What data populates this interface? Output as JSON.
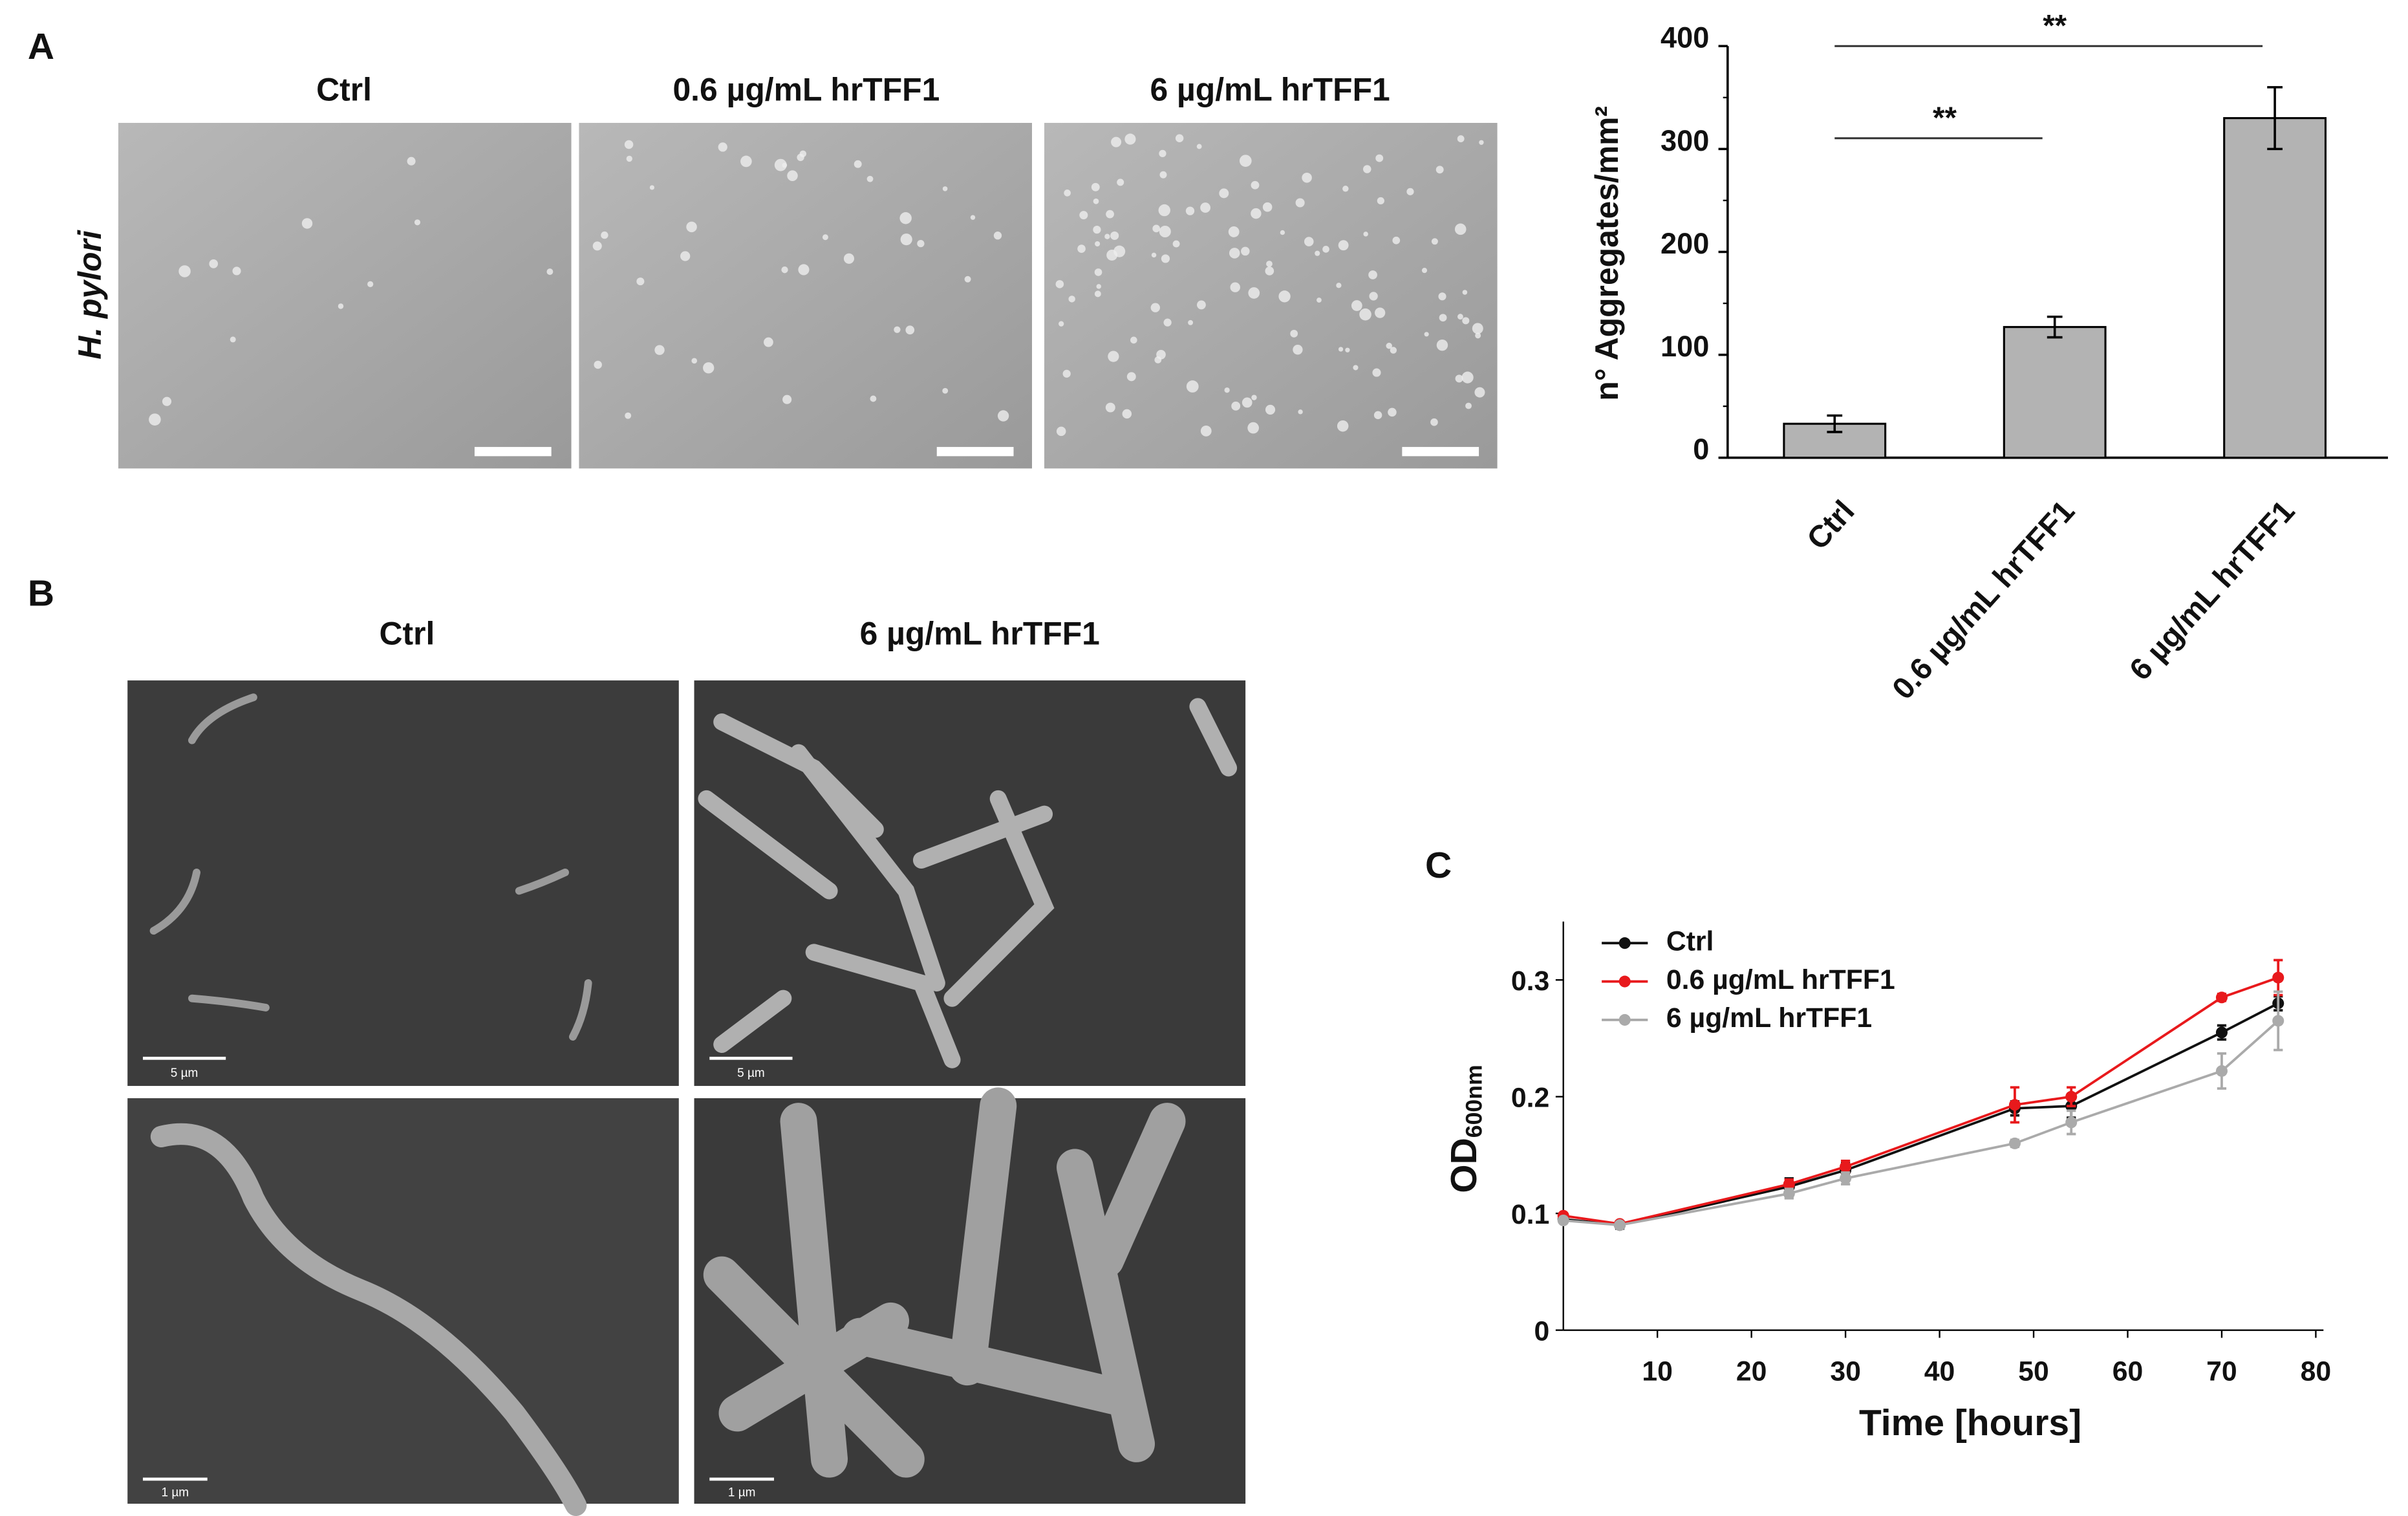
{
  "panel_labels": [
    "A",
    "B",
    "C"
  ],
  "panel_a": {
    "row_label": "H. pylori",
    "columns": [
      "Ctrl",
      "0.6 µg/mL hrTFF1",
      "6 µg/mL hrTFF1"
    ]
  },
  "panel_b": {
    "columns": [
      "Ctrl",
      "6 µg/mL hrTFF1"
    ],
    "scale_bars": [
      "5 µm",
      "5 µm",
      "1 µm",
      "1 µm"
    ]
  },
  "chart_data": [
    {
      "type": "bar",
      "ylabel": "n° Aggregates/mm²",
      "categories": [
        "Ctrl",
        "0.6 µg/mL hrTFF1",
        "6 µg/mL hrTFF1"
      ],
      "values": [
        33,
        127,
        330
      ],
      "errors": [
        8,
        10,
        30
      ],
      "color": "#b3b3b3",
      "ylim": [
        0,
        400
      ],
      "yticks": [
        0,
        100,
        200,
        300,
        400
      ],
      "annotations": [
        "**",
        "**"
      ]
    },
    {
      "type": "line",
      "xlabel": "Time [hours]",
      "ylabel": {
        "main": "OD",
        "sub": "600nm"
      },
      "x": [
        0,
        6,
        24,
        30,
        48,
        54,
        70,
        76
      ],
      "xlim": [
        0,
        80
      ],
      "xticks": [
        10,
        20,
        30,
        40,
        50,
        60,
        70,
        80
      ],
      "ylim": [
        0,
        0.35
      ],
      "yticks": [
        0,
        0.1,
        0.2,
        0.3
      ],
      "legend": "upper left",
      "series": [
        {
          "name": "Ctrl",
          "color": "#111111",
          "values": [
            0.095,
            0.09,
            0.123,
            0.137,
            0.19,
            0.192,
            0.255,
            0.28
          ],
          "errors": [
            0.003,
            0.003,
            0.007,
            0.006,
            0.006,
            0.01,
            0.006,
            0.006
          ]
        },
        {
          "name": "0.6 µg/mL hrTFF1",
          "color": "#e8191c",
          "values": [
            0.098,
            0.091,
            0.125,
            0.14,
            0.193,
            0.2,
            0.285,
            0.302
          ],
          "errors": [
            0.002,
            0.002,
            0.004,
            0.005,
            0.015,
            0.008,
            0.003,
            0.015
          ]
        },
        {
          "name": "6 µg/mL hrTFF1",
          "color": "#aaaaaa",
          "values": [
            0.094,
            0.09,
            0.117,
            0.13,
            0.16,
            0.178,
            0.222,
            0.265
          ],
          "errors": [
            0.002,
            0.002,
            0.004,
            0.005,
            0.003,
            0.01,
            0.015,
            0.025
          ]
        }
      ]
    }
  ]
}
